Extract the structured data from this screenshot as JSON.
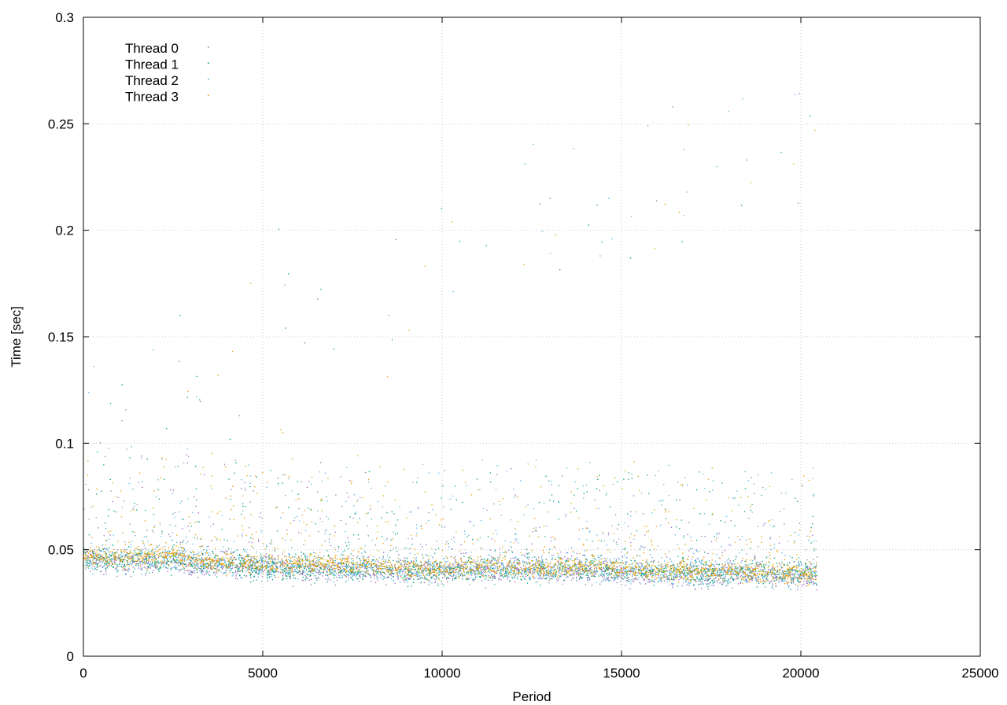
{
  "chart_data": {
    "type": "scatter",
    "title": "",
    "xlabel": "Period",
    "ylabel": "Time [sec]",
    "xlim": [
      0,
      25000
    ],
    "ylim": [
      0,
      0.3
    ],
    "xticks": [
      0,
      5000,
      10000,
      15000,
      20000,
      25000
    ],
    "xtick_labels": [
      "0",
      "5000",
      "10000",
      "15000",
      "20000",
      "25000"
    ],
    "yticks": [
      0,
      0.05,
      0.1,
      0.15,
      0.2,
      0.25,
      0.3
    ],
    "ytick_labels": [
      "0",
      "0.05",
      "0.1",
      "0.15",
      "0.2",
      "0.25",
      "0.3"
    ],
    "grid": true,
    "legend_position": "top-left",
    "x_extent": [
      0,
      20450
    ],
    "series": [
      {
        "name": "Thread 0",
        "color": "#9467bd",
        "points": [
          [
            0,
            0.046
          ],
          [
            1000,
            0.044
          ],
          [
            2000,
            0.045
          ],
          [
            3000,
            0.043
          ],
          [
            4000,
            0.043
          ],
          [
            5000,
            0.042
          ],
          [
            6000,
            0.041
          ],
          [
            7000,
            0.041
          ],
          [
            8000,
            0.04
          ],
          [
            9000,
            0.04
          ],
          [
            10000,
            0.04
          ],
          [
            11000,
            0.04
          ],
          [
            12000,
            0.041
          ],
          [
            13000,
            0.04
          ],
          [
            14000,
            0.04
          ],
          [
            15000,
            0.039
          ],
          [
            16000,
            0.039
          ],
          [
            17000,
            0.037
          ],
          [
            18000,
            0.039
          ],
          [
            19000,
            0.038
          ],
          [
            20000,
            0.037
          ],
          [
            20450,
            0.036
          ]
        ]
      },
      {
        "name": "Thread 1",
        "color": "#009e73",
        "points": [
          [
            0,
            0.046
          ],
          [
            1000,
            0.045
          ],
          [
            2000,
            0.045
          ],
          [
            3000,
            0.044
          ],
          [
            4000,
            0.043
          ],
          [
            5000,
            0.042
          ],
          [
            6000,
            0.041
          ],
          [
            7000,
            0.041
          ],
          [
            8000,
            0.041
          ],
          [
            9000,
            0.04
          ],
          [
            10000,
            0.04
          ],
          [
            11000,
            0.041
          ],
          [
            12000,
            0.041
          ],
          [
            13000,
            0.04
          ],
          [
            14000,
            0.041
          ],
          [
            15000,
            0.04
          ],
          [
            16000,
            0.04
          ],
          [
            17000,
            0.039
          ],
          [
            18000,
            0.04
          ],
          [
            19000,
            0.039
          ],
          [
            20000,
            0.038
          ],
          [
            20450,
            0.039
          ]
        ]
      },
      {
        "name": "Thread 2",
        "color": "#56b4e9",
        "points": [
          [
            0,
            0.045
          ],
          [
            1000,
            0.045
          ],
          [
            2000,
            0.046
          ],
          [
            3000,
            0.044
          ],
          [
            4000,
            0.043
          ],
          [
            5000,
            0.042
          ],
          [
            6000,
            0.042
          ],
          [
            7000,
            0.041
          ],
          [
            8000,
            0.041
          ],
          [
            9000,
            0.04
          ],
          [
            10000,
            0.041
          ],
          [
            11000,
            0.041
          ],
          [
            12000,
            0.041
          ],
          [
            13000,
            0.041
          ],
          [
            14000,
            0.041
          ],
          [
            15000,
            0.041
          ],
          [
            16000,
            0.04
          ],
          [
            17000,
            0.039
          ],
          [
            18000,
            0.04
          ],
          [
            19000,
            0.038
          ],
          [
            20000,
            0.039
          ],
          [
            20450,
            0.039
          ]
        ]
      },
      {
        "name": "Thread 3",
        "color": "#e69f00",
        "points": [
          [
            0,
            0.047
          ],
          [
            1000,
            0.046
          ],
          [
            2000,
            0.047
          ],
          [
            2600,
            0.048
          ],
          [
            3000,
            0.045
          ],
          [
            4000,
            0.044
          ],
          [
            5000,
            0.043
          ],
          [
            6000,
            0.043
          ],
          [
            7000,
            0.043
          ],
          [
            8000,
            0.042
          ],
          [
            9000,
            0.041
          ],
          [
            10000,
            0.041
          ],
          [
            11000,
            0.042
          ],
          [
            12000,
            0.042
          ],
          [
            13000,
            0.041
          ],
          [
            14000,
            0.042
          ],
          [
            15000,
            0.041
          ],
          [
            16000,
            0.04
          ],
          [
            17000,
            0.04
          ],
          [
            18000,
            0.04
          ],
          [
            19000,
            0.039
          ],
          [
            20000,
            0.038
          ],
          [
            20450,
            0.04
          ]
        ]
      }
    ]
  }
}
